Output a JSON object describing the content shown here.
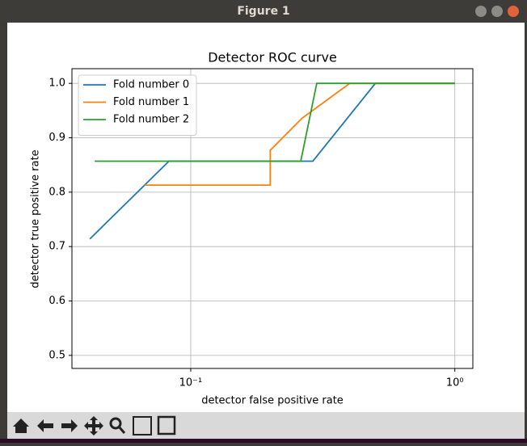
{
  "window": {
    "title": "Figure 1"
  },
  "chart_data": {
    "type": "line",
    "title": "Detector ROC curve",
    "xlabel": "detector false positive rate",
    "ylabel": "detector true positive rate",
    "xscale": "log",
    "grid": true,
    "legend": "upper left",
    "xlim": [
      0.0355,
      1.17
    ],
    "ylim": [
      0.476,
      1.027
    ],
    "xticks": [
      {
        "value": 0.1,
        "label": "10⁻¹"
      },
      {
        "value": 1,
        "label": "10⁰"
      }
    ],
    "yticks": [
      0.5,
      0.6,
      0.7,
      0.8,
      0.9,
      {
        "value": 1.0,
        "label": "1.0"
      }
    ],
    "series": [
      {
        "name": "Fold number 0",
        "color": "#1f77b4",
        "x": [
          0.0415,
          0.0827,
          0.29,
          0.5,
          1.0
        ],
        "values": [
          0.714,
          0.857,
          0.857,
          1.0,
          1.0
        ]
      },
      {
        "name": "Fold number 1",
        "color": "#ff7f0e",
        "x": [
          0.067,
          0.2,
          0.2,
          0.264,
          0.4,
          1.0
        ],
        "values": [
          0.813,
          0.813,
          0.877,
          0.936,
          1.0,
          1.0
        ]
      },
      {
        "name": "Fold number 2",
        "color": "#2ca02c",
        "x": [
          0.0433,
          0.261,
          0.3,
          1.0
        ],
        "values": [
          0.857,
          0.857,
          1.0,
          1.0
        ]
      }
    ]
  }
}
